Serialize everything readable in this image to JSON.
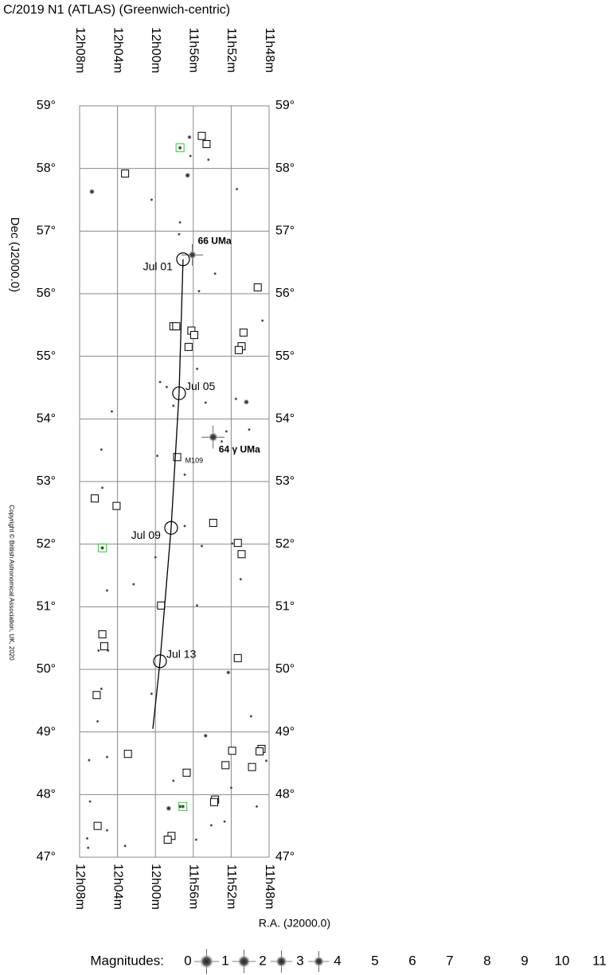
{
  "chart_data": {
    "type": "starchart",
    "title": "C/2019 N1 (ATLAS)  (Greenwich-centric)",
    "xlabel": "R.A. (J2000.0)",
    "ylabel": "Dec (J2000.0)",
    "copyright": "Copyright © British Astronomical Association, UK, 2020",
    "xlim": [
      728,
      708
    ],
    "ylim": [
      47,
      59
    ],
    "xticks": [
      {
        "value": 728,
        "label": "12h08m"
      },
      {
        "value": 724,
        "label": "12h04m"
      },
      {
        "value": 720,
        "label": "12h00m"
      },
      {
        "value": 716,
        "label": "11h56m"
      },
      {
        "value": 712,
        "label": "11h52m"
      },
      {
        "value": 708,
        "label": "11h48m"
      }
    ],
    "yticks": [
      {
        "value": 47,
        "label": "47°"
      },
      {
        "value": 48,
        "label": "48°"
      },
      {
        "value": 49,
        "label": "49°"
      },
      {
        "value": 50,
        "label": "50°"
      },
      {
        "value": 51,
        "label": "51°"
      },
      {
        "value": 52,
        "label": "52°"
      },
      {
        "value": 53,
        "label": "53°"
      },
      {
        "value": 54,
        "label": "54°"
      },
      {
        "value": 55,
        "label": "55°"
      },
      {
        "value": 56,
        "label": "56°"
      },
      {
        "value": 57,
        "label": "57°"
      },
      {
        "value": 58,
        "label": "58°"
      },
      {
        "value": 59,
        "label": "59°"
      }
    ],
    "grid": true,
    "comet": {
      "x": [
        717.08,
        717.5,
        718.34,
        719.51,
        720.27
      ],
      "y": [
        56.55,
        54.41,
        52.26,
        50.13,
        49.05
      ],
      "labels": [
        "Jul 01",
        "Jul 05",
        "Jul 09",
        "Jul 13",
        null
      ],
      "color": "#000000"
    },
    "named_stars": [
      {
        "name": "66 UMa",
        "x": 716.1,
        "y": 56.62,
        "mag": 4
      },
      {
        "name": "64 γ UMa",
        "x": 713.9,
        "y": 53.71,
        "mag": 3
      }
    ],
    "stars": {
      "x": [
        716.4,
        716.3,
        714.4,
        716.6,
        726.7,
        720.4,
        711.4,
        717.4,
        717.5,
        713.7,
        715.4,
        708.7,
        715.6,
        719.5,
        718.8,
        718.1,
        714.7,
        711.5,
        710.4,
        710.1,
        724.6,
        712.5,
        713.0,
        725.7,
        719.8,
        716.9,
        725.6,
        716.9,
        711.9,
        715.1,
        720.0,
        722.3,
        725.1,
        711.0,
        715.6,
        726.0,
        725.0,
        712.3,
        725.7,
        720.4,
        726.1,
        709.9,
        714.7,
        727.0,
        725.1,
        708.3,
        718.1,
        712.0,
        726.9,
        718.6,
        717.4,
        709.3,
        712.7,
        714.1,
        725.1,
        727.2,
        727.1,
        723.2,
        715.7
      ],
      "y": [
        58.5,
        58.2,
        58.14,
        57.89,
        57.63,
        57.5,
        57.67,
        57.14,
        56.95,
        56.32,
        56.04,
        55.57,
        54.8,
        54.59,
        54.51,
        54.21,
        54.26,
        54.32,
        54.27,
        53.83,
        54.12,
        53.8,
        53.64,
        53.51,
        53.41,
        53.11,
        52.9,
        52.29,
        52.01,
        51.97,
        51.79,
        51.36,
        51.26,
        51.44,
        51.02,
        50.3,
        50.3,
        49.95,
        49.69,
        49.61,
        49.17,
        49.25,
        48.94,
        48.55,
        48.6,
        48.54,
        48.22,
        48.11,
        47.89,
        47.78,
        47.81,
        47.81,
        47.57,
        47.51,
        47.43,
        47.3,
        47.15,
        47.18,
        47.28
      ],
      "mag": [
        7,
        8,
        8,
        6,
        6,
        8,
        8,
        8,
        8,
        8,
        8,
        8,
        8,
        8,
        8,
        8,
        8,
        8,
        6,
        8,
        8,
        8,
        8,
        8,
        8,
        8,
        8,
        8,
        8,
        8,
        8,
        8,
        8,
        8,
        8,
        8,
        8,
        7,
        8,
        8,
        8,
        8,
        7,
        8,
        8,
        8,
        8,
        8,
        8,
        6,
        7,
        8,
        8,
        8,
        8,
        8,
        8,
        8,
        8
      ]
    },
    "objects": {
      "x": [
        715.1,
        714.6,
        723.2,
        709.2,
        718.1,
        717.8,
        716.2,
        715.9,
        710.7,
        710.9,
        711.2,
        716.5,
        717.7,
        726.4,
        724.1,
        713.9,
        711.3,
        710.9,
        719.4,
        725.6,
        725.4,
        711.3,
        726.2,
        711.9,
        708.8,
        709.0,
        722.9,
        712.6,
        709.8,
        716.7,
        713.7,
        713.8,
        726.1,
        718.3,
        718.7
      ],
      "y": [
        58.52,
        58.39,
        57.92,
        56.1,
        55.48,
        55.48,
        55.41,
        55.34,
        55.38,
        55.16,
        55.1,
        55.15,
        53.39,
        52.73,
        52.61,
        52.34,
        52.02,
        51.84,
        51.02,
        50.56,
        50.37,
        50.18,
        49.59,
        48.7,
        48.73,
        48.69,
        48.65,
        48.47,
        48.44,
        48.35,
        47.92,
        47.88,
        47.5,
        47.34,
        47.28
      ],
      "labels": [
        null,
        null,
        null,
        null,
        null,
        null,
        null,
        null,
        null,
        null,
        null,
        null,
        "M109",
        null,
        null,
        null,
        null,
        null,
        null,
        null,
        null,
        null,
        null,
        null,
        null,
        null,
        null,
        null,
        null,
        null,
        null,
        null,
        null,
        null,
        null
      ]
    },
    "highlighted": {
      "x": [
        717.4,
        725.6,
        717.1
      ],
      "y": [
        58.33,
        51.94,
        47.81
      ],
      "mag": [
        7,
        7,
        7
      ],
      "color": "#33cc33"
    },
    "magnitude_legend": {
      "title": "Magnitudes:",
      "values": [
        0,
        1,
        2,
        3,
        4,
        5,
        6,
        7,
        8,
        9,
        10,
        11
      ]
    }
  }
}
